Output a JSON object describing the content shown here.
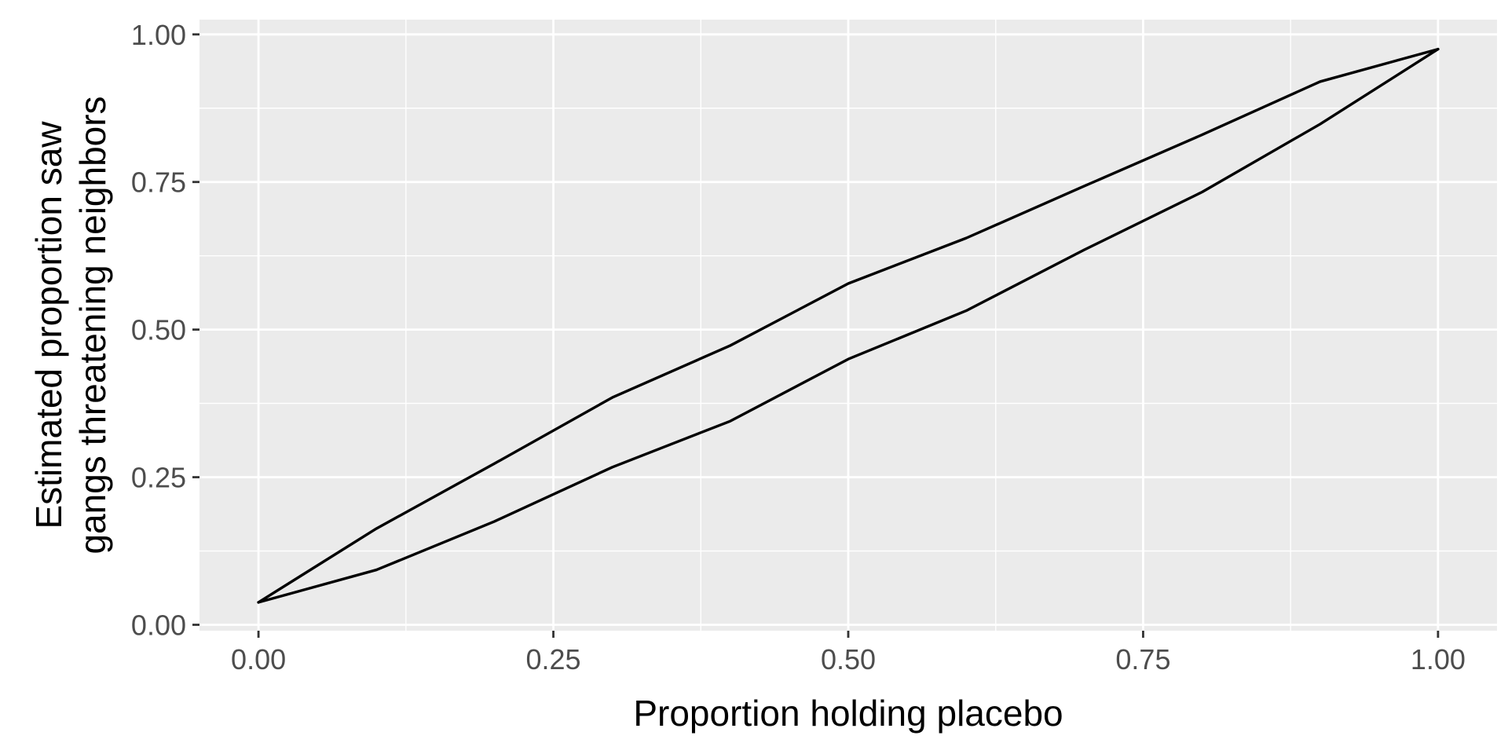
{
  "chart_data": {
    "type": "line",
    "title": "",
    "xlabel": "Proportion holding placebo",
    "ylabel": [
      "Estimated proportion saw",
      "gangs threatening neighbors"
    ],
    "xlim": [
      -0.05,
      1.05
    ],
    "ylim": [
      -0.01,
      1.025
    ],
    "x_ticks": [
      0.0,
      0.25,
      0.5,
      0.75,
      1.0
    ],
    "x_tick_labels": [
      "0.00",
      "0.25",
      "0.50",
      "0.75",
      "1.00"
    ],
    "y_ticks": [
      0.0,
      0.25,
      0.5,
      0.75,
      1.0
    ],
    "y_tick_labels": [
      "0.00",
      "0.25",
      "0.50",
      "0.75",
      "1.00"
    ],
    "grid": true,
    "legend": "none",
    "colors": {
      "panel": "#ebebeb",
      "grid": "#ffffff",
      "line": "#000000"
    },
    "x": [
      0.0,
      0.1,
      0.2,
      0.3,
      0.4,
      0.5,
      0.6,
      0.7,
      0.8,
      0.9,
      1.0
    ],
    "series": [
      {
        "values": [
          0.038,
          0.163,
          0.273,
          0.385,
          0.473,
          0.578,
          0.655,
          0.743,
          0.83,
          0.92,
          0.975
        ]
      },
      {
        "values": [
          0.038,
          0.093,
          0.175,
          0.267,
          0.345,
          0.45,
          0.532,
          0.635,
          0.733,
          0.848,
          0.975
        ]
      }
    ]
  }
}
